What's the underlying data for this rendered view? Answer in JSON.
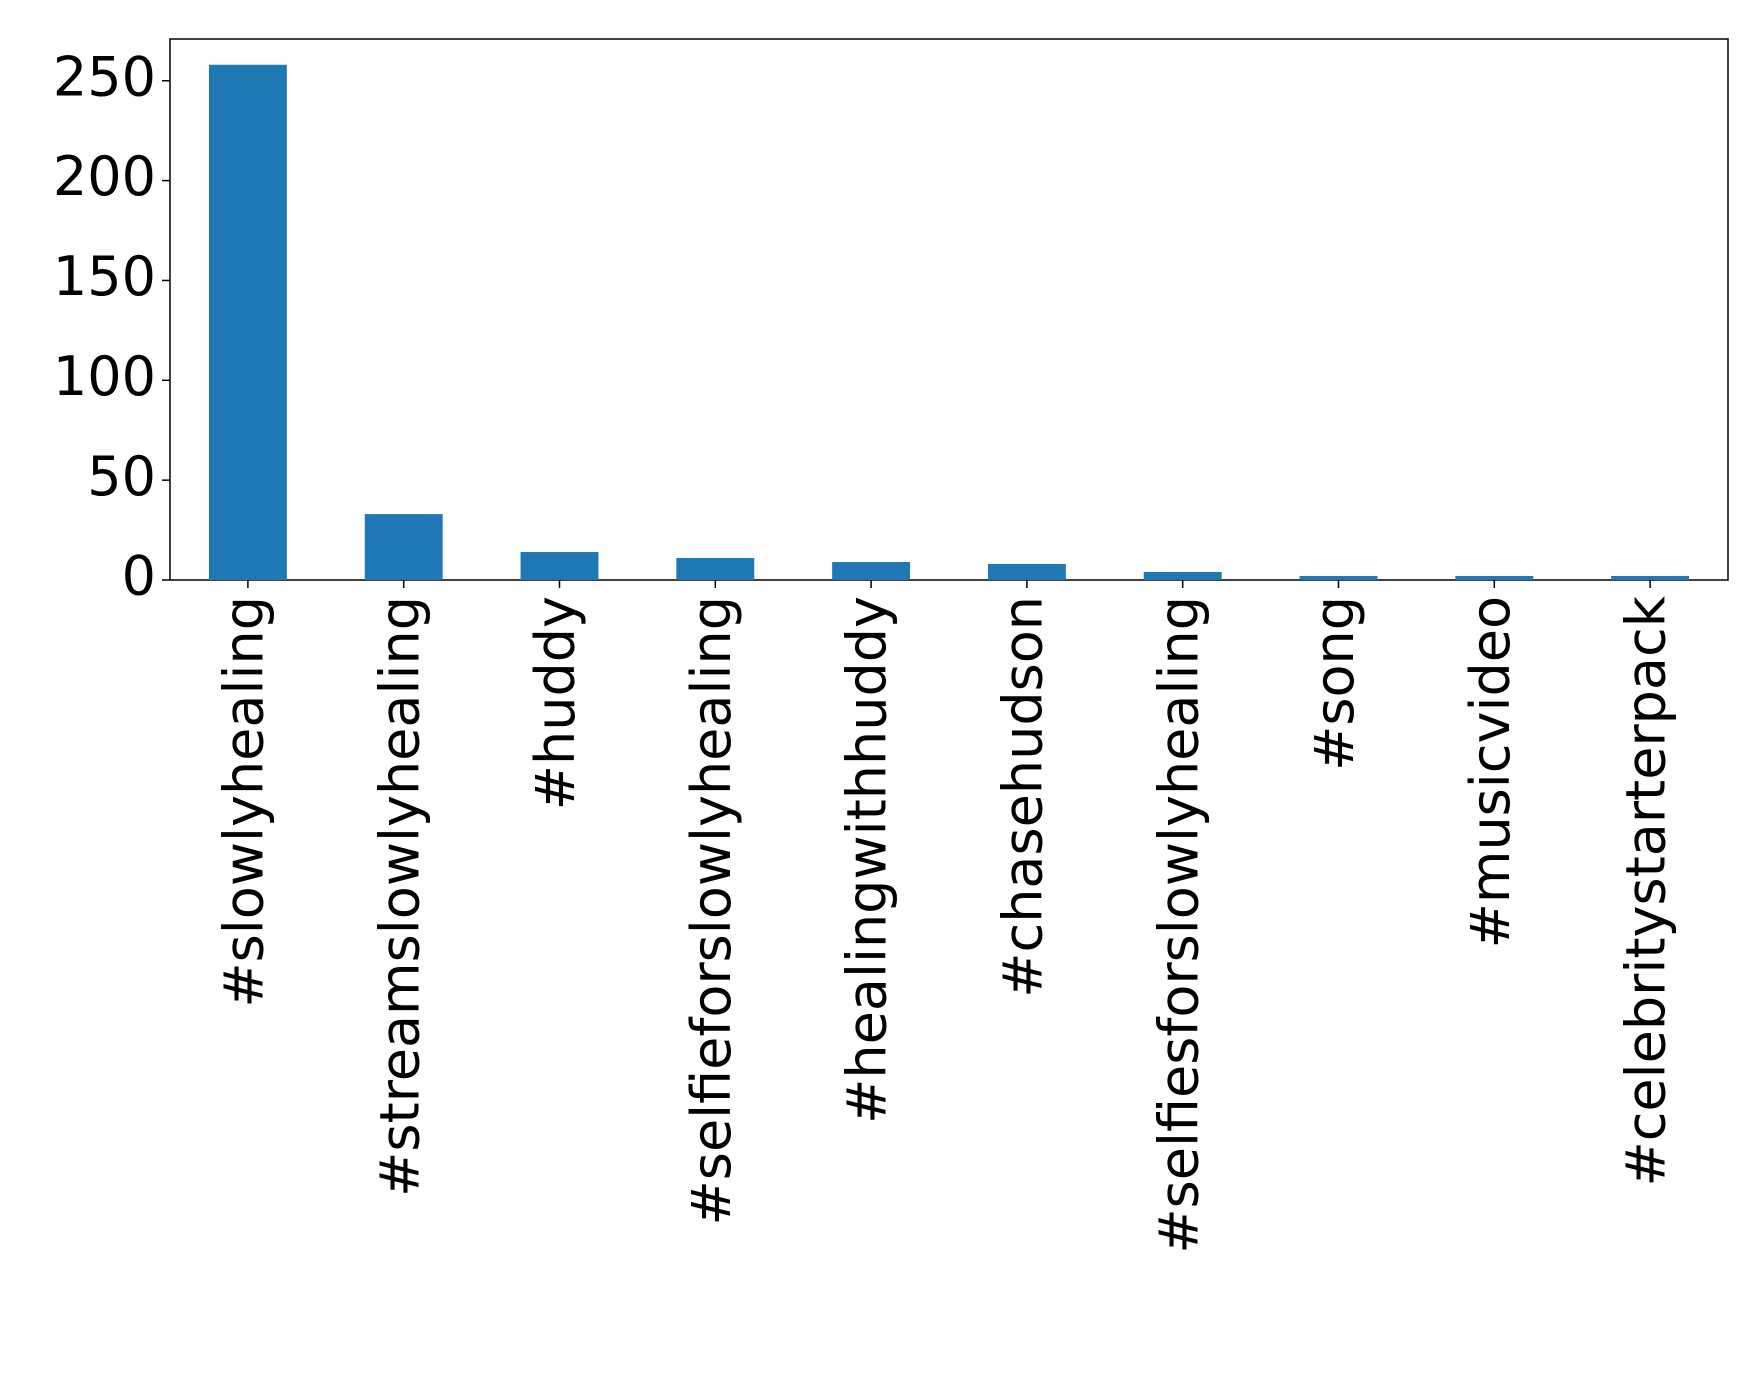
{
  "chart_data": {
    "type": "bar",
    "categories": [
      "#slowlyhealing",
      "#streamslowlyhealing",
      "#huddy",
      "#selfieforslowlyhealing",
      "#healingwithhuddy",
      "#chasehudson",
      "#selfiesforslowlyhealing",
      "#song",
      "#musicvideo",
      "#celebritystarterpack"
    ],
    "values": [
      258,
      33,
      14,
      11,
      9,
      8,
      4,
      2,
      2,
      2
    ],
    "color": "#1f77b4",
    "ylim": [
      0,
      270.9
    ],
    "yticks": [
      0,
      50,
      100,
      150,
      200,
      250
    ],
    "grid": false
  }
}
